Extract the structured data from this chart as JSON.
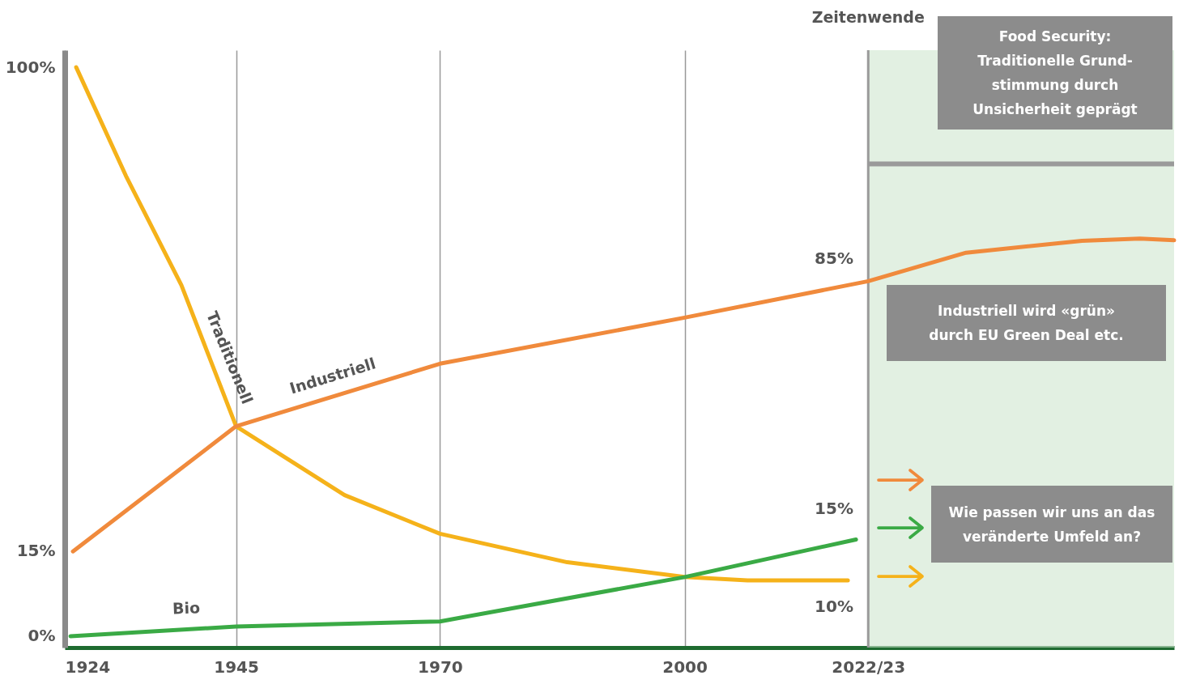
{
  "chart_data": {
    "type": "line",
    "x": [
      1925.4,
      1931.5,
      1938.3,
      1945,
      1958.3,
      1970,
      1985.6,
      2000,
      2007.7,
      2020
    ],
    "series": [
      {
        "name": "Traditionell",
        "color": "#f5b21a",
        "values": [
          100,
          80.9,
          61.7,
          36.9,
          24.8,
          18,
          13,
          10.4,
          9.8,
          9.8
        ]
      },
      {
        "name": "Industriell",
        "color": "#f08a3c",
        "x": [
          1925,
          1945,
          1970,
          2000,
          2022.5,
          2034.5,
          2048.7,
          2055.8,
          2060
        ],
        "values": [
          14.9,
          36.9,
          47.9,
          56,
          62.4,
          67.4,
          69.5,
          69.9,
          69.6
        ]
      },
      {
        "name": "Bio",
        "color": "#3aaa45",
        "x": [
          1924.7,
          1945,
          1970,
          2000,
          2021
        ],
        "values": [
          0,
          1.7,
          2.6,
          10.4,
          17
        ]
      }
    ],
    "xlim": [
      1924,
      2060
    ],
    "xticks": [
      1924,
      1945,
      1970,
      2000,
      {
        "value": 2022.5,
        "label": "2022/23"
      }
    ],
    "ylim": [
      -2,
      103
    ],
    "yticks": [
      {
        "value": 0,
        "label": "0%"
      },
      {
        "value": 15,
        "label": "15%"
      },
      {
        "value": 100,
        "label": "100%"
      }
    ],
    "grid": "x",
    "marker": "none",
    "line_style": "solid",
    "ref_lines": [
      {
        "axis": "x",
        "value": 2022.5,
        "label": "Zeitenwende",
        "color": "#9a9a9a"
      },
      {
        "axis": "y",
        "value": 83,
        "label": null,
        "color": "#9a9a9a"
      }
    ],
    "bands": [
      {
        "axis": "x",
        "from": 2022.5,
        "to": 2060,
        "label": null,
        "color": "#cfe6cf"
      }
    ],
    "annotations": [
      "Food Security:\nTraditionelle Grund-\nstimmung durch\nUnsicherheit geprägt",
      "Industriell wird «grün»\ndurch EU Green Deal etc.",
      "Wie passen wir uns an das\nveränderte Umfeld an?",
      "85%",
      "15%",
      "10%"
    ]
  }
}
